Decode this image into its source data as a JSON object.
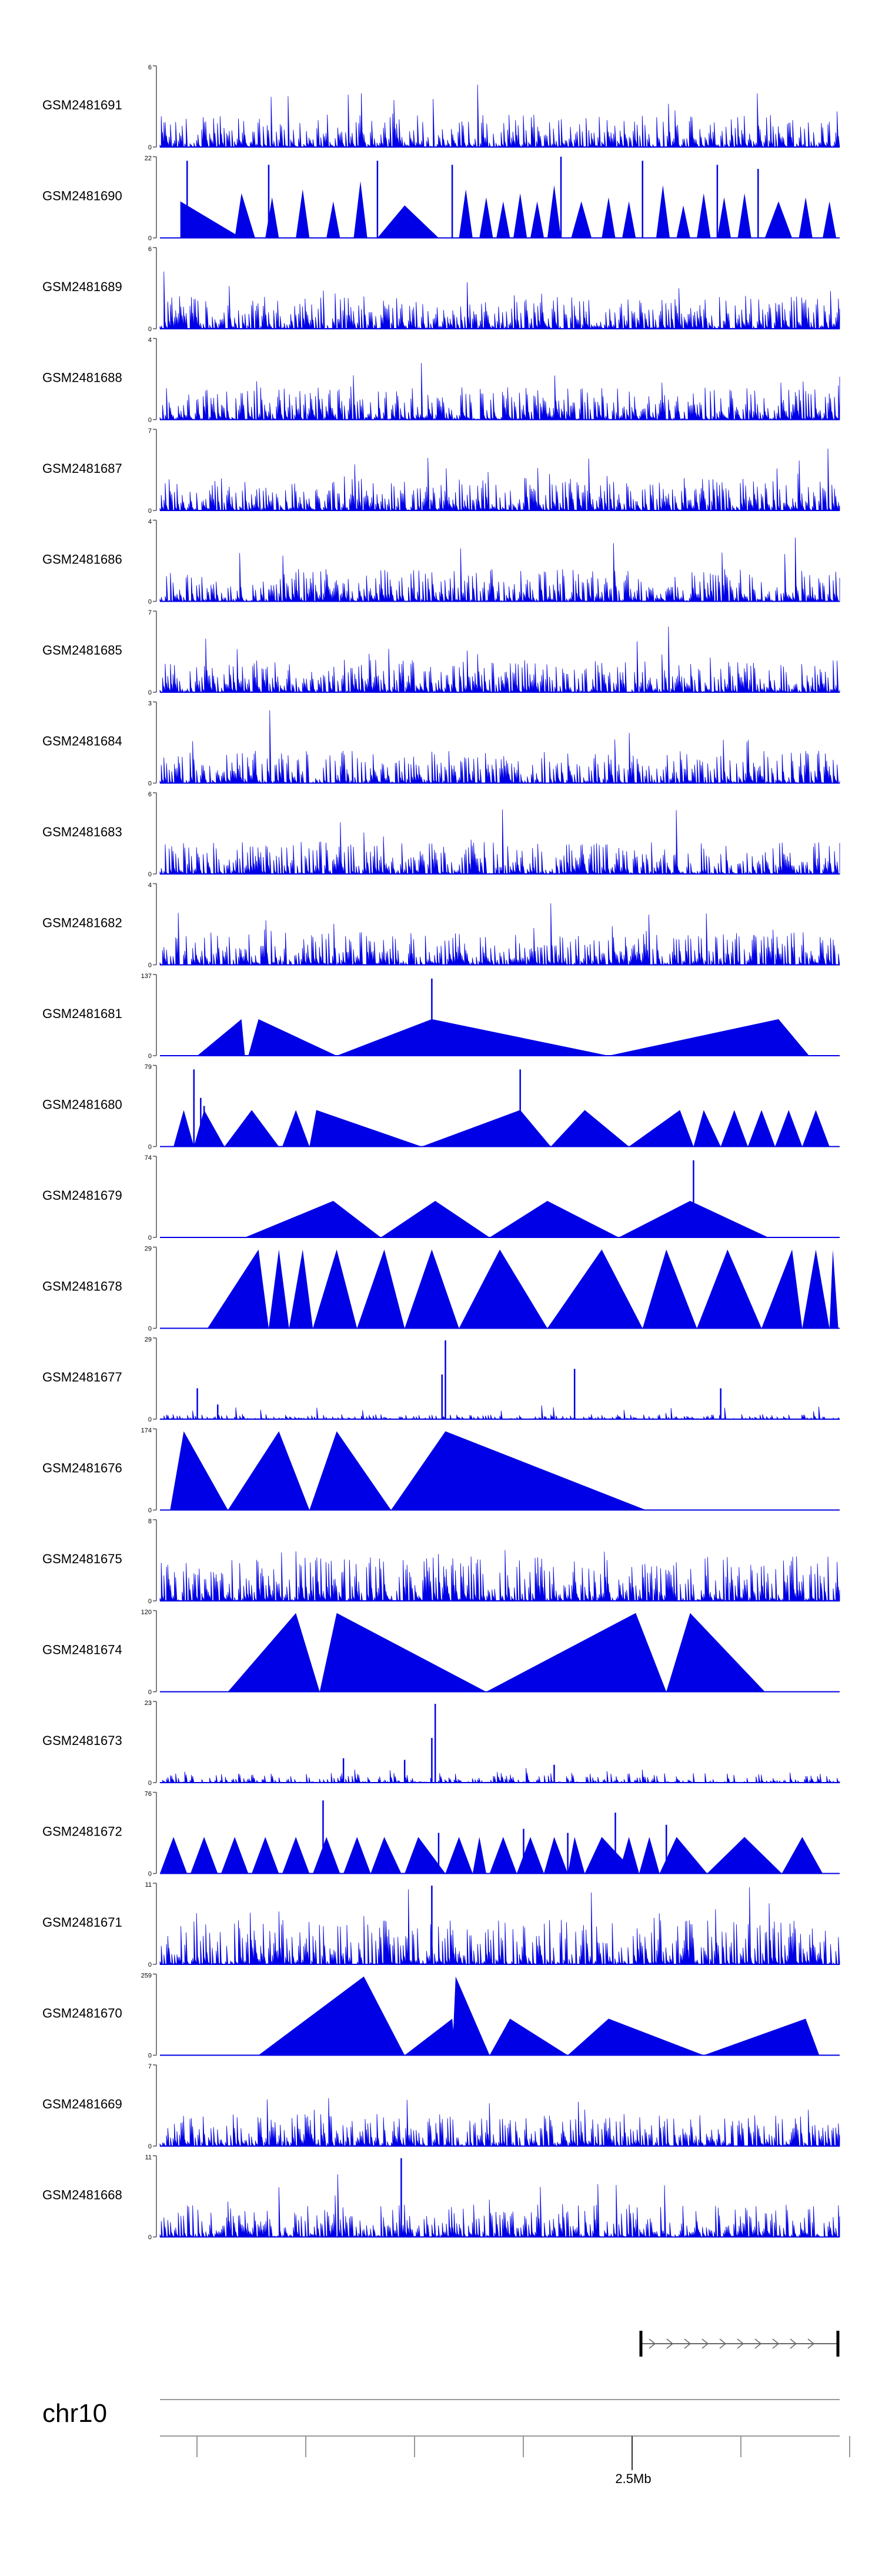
{
  "colors": {
    "signal": "#0000e6",
    "axis": "#555555",
    "label": "#000000",
    "chrom_line": "#999999"
  },
  "chart_data": {
    "type": "area",
    "tracks": [
      {
        "name": "GSM2481691",
        "ymax": "6",
        "ymin": "0",
        "style": "dense",
        "seed": 101,
        "spikes": []
      },
      {
        "name": "GSM2481690",
        "ymax": "22",
        "ymin": "0",
        "style": "triangles",
        "seed": 102,
        "peaks": [
          [
            0.03,
            0.45,
            0.03,
            0.12
          ],
          [
            0.12,
            0.55,
            0.11,
            0.14
          ],
          [
            0.165,
            0.5,
            0.155,
            0.175
          ],
          [
            0.21,
            0.6,
            0.2,
            0.22
          ],
          [
            0.255,
            0.45,
            0.245,
            0.265
          ],
          [
            0.295,
            0.7,
            0.285,
            0.305
          ],
          [
            0.36,
            0.4,
            0.32,
            0.41
          ],
          [
            0.45,
            0.6,
            0.44,
            0.46
          ],
          [
            0.48,
            0.5,
            0.47,
            0.49
          ],
          [
            0.505,
            0.45,
            0.495,
            0.515
          ],
          [
            0.53,
            0.55,
            0.52,
            0.54
          ],
          [
            0.555,
            0.45,
            0.545,
            0.565
          ],
          [
            0.58,
            0.65,
            0.57,
            0.59
          ],
          [
            0.62,
            0.45,
            0.605,
            0.635
          ],
          [
            0.66,
            0.5,
            0.65,
            0.67
          ],
          [
            0.69,
            0.45,
            0.68,
            0.7
          ],
          [
            0.74,
            0.65,
            0.73,
            0.75
          ],
          [
            0.77,
            0.4,
            0.76,
            0.78
          ],
          [
            0.8,
            0.55,
            0.79,
            0.81
          ],
          [
            0.83,
            0.5,
            0.82,
            0.84
          ],
          [
            0.86,
            0.55,
            0.85,
            0.87
          ],
          [
            0.91,
            0.45,
            0.89,
            0.93
          ],
          [
            0.95,
            0.5,
            0.94,
            0.96
          ],
          [
            0.985,
            0.45,
            0.975,
            0.995
          ]
        ],
        "spikes": [
          [
            0.04,
            0.95
          ],
          [
            0.16,
            0.9
          ],
          [
            0.32,
            0.95
          ],
          [
            0.43,
            0.9
          ],
          [
            0.59,
            1.0
          ],
          [
            0.71,
            0.95
          ],
          [
            0.82,
            0.9
          ],
          [
            0.88,
            0.85
          ]
        ]
      },
      {
        "name": "GSM2481689",
        "ymax": "6",
        "ymin": "0",
        "style": "dense",
        "seed": 103,
        "spikes": []
      },
      {
        "name": "GSM2481688",
        "ymax": "4",
        "ymin": "0",
        "style": "dense",
        "seed": 104,
        "spikes": []
      },
      {
        "name": "GSM2481687",
        "ymax": "7",
        "ymin": "0",
        "style": "dense",
        "seed": 105,
        "spikes": []
      },
      {
        "name": "GSM2481686",
        "ymax": "4",
        "ymin": "0",
        "style": "dense",
        "seed": 106,
        "spikes": []
      },
      {
        "name": "GSM2481685",
        "ymax": "7",
        "ymin": "0",
        "style": "dense",
        "seed": 107,
        "spikes": []
      },
      {
        "name": "GSM2481684",
        "ymax": "3",
        "ymin": "0",
        "style": "dense",
        "seed": 108,
        "spikes": []
      },
      {
        "name": "GSM2481683",
        "ymax": "6",
        "ymin": "0",
        "style": "dense",
        "seed": 109,
        "spikes": []
      },
      {
        "name": "GSM2481682",
        "ymax": "4",
        "ymin": "0",
        "style": "dense",
        "seed": 110,
        "spikes": []
      },
      {
        "name": "GSM2481681",
        "ymax": "137",
        "ymin": "0",
        "style": "triangles",
        "seed": 111,
        "peaks": [
          [
            0.12,
            0.45,
            0.055,
            0.125
          ],
          [
            0.145,
            0.45,
            0.13,
            0.26
          ],
          [
            0.4,
            0.45,
            0.26,
            0.66
          ],
          [
            0.91,
            0.45,
            0.66,
            0.955
          ]
        ],
        "spikes": [
          [
            0.4,
            0.95
          ]
        ]
      },
      {
        "name": "GSM2481680",
        "ymax": "79",
        "ymin": "0",
        "style": "triangles",
        "seed": 112,
        "peaks": [
          [
            0.035,
            0.45,
            0.02,
            0.05
          ],
          [
            0.065,
            0.45,
            0.05,
            0.095
          ],
          [
            0.135,
            0.45,
            0.095,
            0.175
          ],
          [
            0.2,
            0.45,
            0.18,
            0.22
          ],
          [
            0.23,
            0.45,
            0.22,
            0.385
          ],
          [
            0.53,
            0.45,
            0.385,
            0.575
          ],
          [
            0.625,
            0.45,
            0.575,
            0.69
          ],
          [
            0.765,
            0.45,
            0.69,
            0.785
          ],
          [
            0.8,
            0.45,
            0.785,
            0.825
          ],
          [
            0.845,
            0.45,
            0.825,
            0.865
          ],
          [
            0.885,
            0.45,
            0.865,
            0.905
          ],
          [
            0.925,
            0.45,
            0.905,
            0.945
          ],
          [
            0.965,
            0.45,
            0.945,
            0.985
          ]
        ],
        "spikes": [
          [
            0.05,
            0.95
          ],
          [
            0.06,
            0.6
          ],
          [
            0.065,
            0.5
          ],
          [
            0.53,
            0.95
          ]
        ]
      },
      {
        "name": "GSM2481679",
        "ymax": "74",
        "ymin": "0",
        "style": "triangles",
        "seed": 113,
        "peaks": [
          [
            0.255,
            0.45,
            0.125,
            0.325
          ],
          [
            0.405,
            0.45,
            0.325,
            0.485
          ],
          [
            0.57,
            0.45,
            0.485,
            0.675
          ],
          [
            0.78,
            0.45,
            0.675,
            0.895
          ]
        ],
        "spikes": [
          [
            0.785,
            0.95
          ]
        ]
      },
      {
        "name": "GSM2481678",
        "ymax": "29",
        "ymin": "0",
        "style": "triangles",
        "seed": 114,
        "peaks": [
          [
            0.145,
            0.97,
            0.07,
            0.16
          ],
          [
            0.175,
            0.97,
            0.16,
            0.19
          ],
          [
            0.21,
            0.97,
            0.19,
            0.225
          ],
          [
            0.26,
            0.97,
            0.225,
            0.29
          ],
          [
            0.33,
            0.97,
            0.29,
            0.36
          ],
          [
            0.4,
            0.97,
            0.36,
            0.44
          ],
          [
            0.5,
            0.97,
            0.44,
            0.57
          ],
          [
            0.65,
            0.97,
            0.57,
            0.71
          ],
          [
            0.745,
            0.97,
            0.71,
            0.79
          ],
          [
            0.835,
            0.97,
            0.79,
            0.885
          ],
          [
            0.93,
            0.97,
            0.885,
            0.945
          ],
          [
            0.965,
            0.97,
            0.945,
            0.985
          ],
          [
            0.99,
            0.97,
            0.985,
            0.998
          ]
        ],
        "spikes": []
      },
      {
        "name": "GSM2481677",
        "ymax": "29",
        "ymin": "0",
        "style": "sparse",
        "seed": 115,
        "spikes": [
          [
            0.055,
            0.38
          ],
          [
            0.085,
            0.18
          ],
          [
            0.42,
            0.97
          ],
          [
            0.415,
            0.55
          ],
          [
            0.61,
            0.62
          ],
          [
            0.825,
            0.38
          ]
        ]
      },
      {
        "name": "GSM2481676",
        "ymax": "174",
        "ymin": "0",
        "style": "triangles",
        "seed": 116,
        "peaks": [
          [
            0.035,
            0.97,
            0.015,
            0.1
          ],
          [
            0.175,
            0.97,
            0.1,
            0.22
          ],
          [
            0.26,
            0.97,
            0.22,
            0.34
          ],
          [
            0.42,
            0.97,
            0.34,
            0.715
          ]
        ],
        "spikes": []
      },
      {
        "name": "GSM2481675",
        "ymax": "8",
        "ymin": "0",
        "style": "dense_tall",
        "seed": 117,
        "spikes": []
      },
      {
        "name": "GSM2481674",
        "ymax": "120",
        "ymin": "0",
        "style": "triangles",
        "seed": 118,
        "peaks": [
          [
            0.2,
            0.97,
            0.1,
            0.235
          ],
          [
            0.26,
            0.97,
            0.235,
            0.48
          ],
          [
            0.7,
            0.97,
            0.48,
            0.745
          ],
          [
            0.78,
            0.97,
            0.745,
            0.89
          ]
        ],
        "spikes": [
          [
            0.205,
            0.28
          ]
        ]
      },
      {
        "name": "GSM2481673",
        "ymax": "23",
        "ymin": "0",
        "style": "sparse_med",
        "seed": 119,
        "spikes": [
          [
            0.405,
            0.97
          ],
          [
            0.4,
            0.55
          ],
          [
            0.27,
            0.3
          ],
          [
            0.36,
            0.28
          ],
          [
            0.58,
            0.22
          ]
        ]
      },
      {
        "name": "GSM2481672",
        "ymax": "76",
        "ymin": "0",
        "style": "triangles",
        "seed": 120,
        "peaks": [
          [
            0.02,
            0.45,
            0.0,
            0.04
          ],
          [
            0.065,
            0.45,
            0.045,
            0.085
          ],
          [
            0.11,
            0.45,
            0.09,
            0.13
          ],
          [
            0.155,
            0.45,
            0.135,
            0.175
          ],
          [
            0.2,
            0.45,
            0.18,
            0.22
          ],
          [
            0.245,
            0.45,
            0.225,
            0.265
          ],
          [
            0.29,
            0.45,
            0.27,
            0.31
          ],
          [
            0.33,
            0.45,
            0.31,
            0.355
          ],
          [
            0.38,
            0.45,
            0.36,
            0.42
          ],
          [
            0.44,
            0.45,
            0.42,
            0.46
          ],
          [
            0.47,
            0.45,
            0.46,
            0.48
          ],
          [
            0.505,
            0.45,
            0.485,
            0.525
          ],
          [
            0.545,
            0.45,
            0.525,
            0.565
          ],
          [
            0.58,
            0.45,
            0.565,
            0.6
          ],
          [
            0.61,
            0.45,
            0.6,
            0.625
          ],
          [
            0.65,
            0.45,
            0.625,
            0.7
          ],
          [
            0.69,
            0.45,
            0.675,
            0.705
          ],
          [
            0.72,
            0.45,
            0.705,
            0.735
          ],
          [
            0.76,
            0.45,
            0.735,
            0.805
          ],
          [
            0.86,
            0.45,
            0.805,
            0.915
          ],
          [
            0.945,
            0.45,
            0.915,
            0.975
          ]
        ],
        "spikes": [
          [
            0.24,
            0.9
          ],
          [
            0.41,
            0.5
          ],
          [
            0.535,
            0.55
          ],
          [
            0.6,
            0.5
          ],
          [
            0.67,
            0.75
          ],
          [
            0.745,
            0.6
          ]
        ]
      },
      {
        "name": "GSM2481671",
        "ymax": "11",
        "ymin": "0",
        "style": "dense_tall",
        "seed": 121,
        "spikes": [
          [
            0.4,
            0.97
          ]
        ]
      },
      {
        "name": "GSM2481670",
        "ymax": "259",
        "ymin": "0",
        "style": "triangles",
        "seed": 122,
        "peaks": [
          [
            0.3,
            0.97,
            0.145,
            0.36
          ],
          [
            0.43,
            0.45,
            0.36,
            0.435
          ],
          [
            0.435,
            0.97,
            0.43,
            0.485
          ],
          [
            0.515,
            0.45,
            0.485,
            0.6
          ],
          [
            0.66,
            0.45,
            0.6,
            0.8
          ],
          [
            0.95,
            0.45,
            0.8,
            0.97
          ]
        ],
        "spikes": []
      },
      {
        "name": "GSM2481669",
        "ymax": "7",
        "ymin": "0",
        "style": "dense",
        "seed": 123,
        "spikes": []
      },
      {
        "name": "GSM2481668",
        "ymax": "11",
        "ymin": "0",
        "style": "dense",
        "seed": 124,
        "spikes": [
          [
            0.355,
            0.97
          ]
        ]
      }
    ],
    "chromosome": "chr10",
    "scale_label": "2.5Mb",
    "gene_strand": "forward",
    "x_tick_count": 7,
    "labeled_tick_index": 4
  }
}
